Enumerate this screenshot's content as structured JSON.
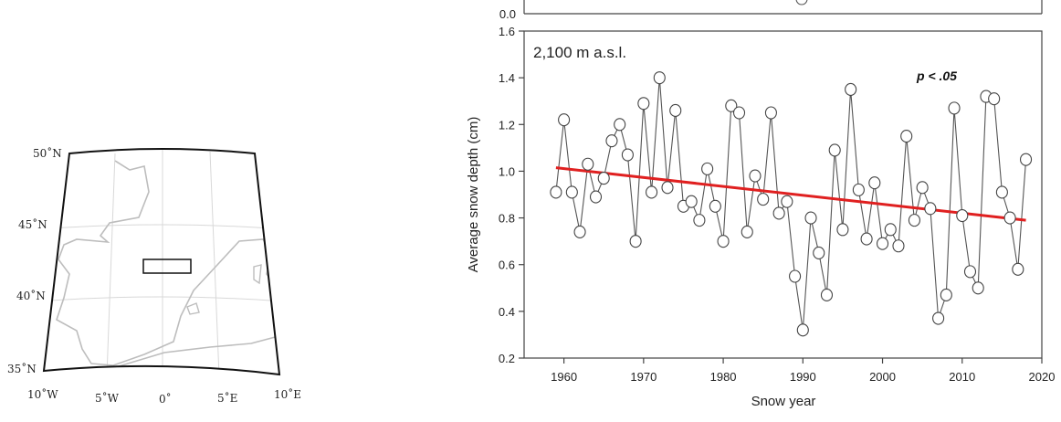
{
  "map": {
    "lat_labels": [
      "50˚N",
      "45˚N",
      "40˚N",
      "35˚N"
    ],
    "lon_labels": [
      "10˚W",
      "5˚W",
      "0˚",
      "5˚E",
      "10˚E"
    ]
  },
  "upper_panel": {
    "visible_tick": "0.0"
  },
  "chart_data": {
    "type": "scatter",
    "panel_label": "2,100 m a.s.l.",
    "annotation": "p < .05",
    "xlabel": "Snow year",
    "ylabel": "Average snow depth (cm)",
    "xlim": [
      1955,
      2020
    ],
    "ylim": [
      0.2,
      1.6
    ],
    "xticks": [
      1960,
      1970,
      1980,
      1990,
      2000,
      2010,
      2020
    ],
    "yticks": [
      0.2,
      0.4,
      0.6,
      0.8,
      1.0,
      1.2,
      1.4,
      1.6
    ],
    "ytick_labels": [
      "0.2",
      "0.4",
      "0.6",
      "0.8",
      "1.0",
      "1.2",
      "1.4",
      "1.6"
    ],
    "grid": false,
    "series": [
      {
        "marker": "open-circle",
        "line_color": "#555555",
        "x": [
          1959,
          1960,
          1961,
          1962,
          1963,
          1964,
          1965,
          1966,
          1967,
          1968,
          1969,
          1970,
          1971,
          1972,
          1973,
          1974,
          1975,
          1976,
          1977,
          1978,
          1979,
          1980,
          1981,
          1982,
          1983,
          1984,
          1985,
          1986,
          1987,
          1988,
          1989,
          1990,
          1991,
          1992,
          1993,
          1994,
          1995,
          1996,
          1997,
          1998,
          1999,
          2000,
          2001,
          2002,
          2003,
          2004,
          2005,
          2006,
          2007,
          2008,
          2009,
          2010,
          2011,
          2012,
          2013,
          2014,
          2015,
          2016,
          2017,
          2018
        ],
        "y": [
          0.91,
          1.22,
          0.91,
          0.74,
          1.03,
          0.89,
          0.97,
          1.13,
          1.2,
          1.07,
          0.7,
          1.29,
          0.91,
          1.4,
          0.93,
          1.26,
          0.85,
          0.87,
          0.79,
          1.01,
          0.85,
          0.7,
          1.28,
          1.25,
          0.74,
          0.98,
          0.88,
          1.25,
          0.82,
          0.87,
          0.55,
          0.32,
          0.8,
          0.65,
          0.47,
          1.09,
          0.75,
          1.35,
          0.92,
          0.71,
          0.95,
          0.69,
          0.75,
          0.68,
          1.15,
          0.79,
          0.93,
          0.84,
          0.37,
          0.47,
          1.27,
          0.81,
          0.57,
          0.5,
          1.32,
          1.31,
          0.91,
          0.8,
          0.58,
          1.05
        ]
      }
    ],
    "trend": {
      "x": [
        1959,
        2018
      ],
      "y": [
        1.015,
        0.79
      ],
      "color": "#e02020"
    }
  }
}
